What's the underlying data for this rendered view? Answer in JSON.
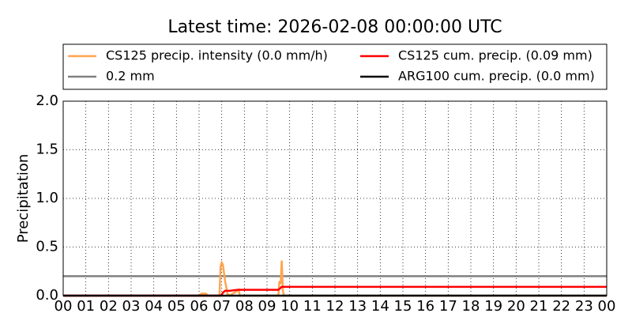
{
  "chart_data": {
    "type": "line",
    "title": "Latest time: 2026-02-08 00:00:00 UTC",
    "y_label": "Precipitation",
    "x": [
      0,
      6.0,
      6.1,
      6.3,
      6.4,
      6.9,
      6.95,
      7.0,
      7.05,
      7.15,
      7.25,
      7.35,
      7.7,
      7.75,
      7.8,
      9.5,
      9.55,
      9.6,
      9.65,
      9.7,
      9.75,
      24
    ],
    "series": [
      {
        "name": "CS125 precip. intensity (0.0 mm/h)",
        "color": "#ffa54f",
        "values": [
          0,
          0,
          0.02,
          0.02,
          0,
          0,
          0.3,
          0.34,
          0.32,
          0.15,
          0.02,
          0,
          0.05,
          0.06,
          0,
          0,
          0.15,
          0.12,
          0.36,
          0.05,
          0,
          0
        ]
      },
      {
        "name": "CS125 cum. precip. (0.09 mm)",
        "color": "#ff0000",
        "values": [
          0,
          0,
          0,
          0,
          0,
          0,
          0,
          0.01,
          0.03,
          0.05,
          0.05,
          0.05,
          0.06,
          0.06,
          0.06,
          0.06,
          0.07,
          0.08,
          0.09,
          0.09,
          0.09,
          0.09
        ]
      },
      {
        "name": "0.2 mm",
        "color": "#808080",
        "values": [
          0.2,
          0.2,
          0.2,
          0.2,
          0.2,
          0.2,
          0.2,
          0.2,
          0.2,
          0.2,
          0.2,
          0.2,
          0.2,
          0.2,
          0.2,
          0.2,
          0.2,
          0.2,
          0.2,
          0.2,
          0.2,
          0.2
        ]
      },
      {
        "name": "ARG100 cum. precip. (0.0 mm)",
        "color": "#000000",
        "values": [
          0,
          0,
          0,
          0,
          0,
          0,
          0,
          0,
          0,
          0,
          0,
          0,
          0,
          0,
          0,
          0,
          0,
          0,
          0,
          0,
          0,
          0
        ]
      }
    ],
    "xlim": [
      0,
      24
    ],
    "xticks": [
      {
        "value": 0,
        "label": "00"
      },
      {
        "value": 1,
        "label": "01"
      },
      {
        "value": 2,
        "label": "02"
      },
      {
        "value": 3,
        "label": "03"
      },
      {
        "value": 4,
        "label": "04"
      },
      {
        "value": 5,
        "label": "05"
      },
      {
        "value": 6,
        "label": "06"
      },
      {
        "value": 7,
        "label": "07"
      },
      {
        "value": 8,
        "label": "08"
      },
      {
        "value": 9,
        "label": "09"
      },
      {
        "value": 10,
        "label": "10"
      },
      {
        "value": 11,
        "label": "11"
      },
      {
        "value": 12,
        "label": "12"
      },
      {
        "value": 13,
        "label": "13"
      },
      {
        "value": 14,
        "label": "14"
      },
      {
        "value": 15,
        "label": "15"
      },
      {
        "value": 16,
        "label": "16"
      },
      {
        "value": 17,
        "label": "17"
      },
      {
        "value": 18,
        "label": "18"
      },
      {
        "value": 19,
        "label": "19"
      },
      {
        "value": 20,
        "label": "20"
      },
      {
        "value": 21,
        "label": "21"
      },
      {
        "value": 22,
        "label": "22"
      },
      {
        "value": 23,
        "label": "23"
      },
      {
        "value": 24,
        "label": "00"
      }
    ],
    "ylim": [
      0,
      2
    ],
    "yticks": [
      {
        "value": 0,
        "label": "0.0"
      },
      0.5,
      {
        "value": 1,
        "label": "1.0"
      },
      1.5,
      {
        "value": 2,
        "label": "2.0"
      }
    ],
    "grid": true
  }
}
